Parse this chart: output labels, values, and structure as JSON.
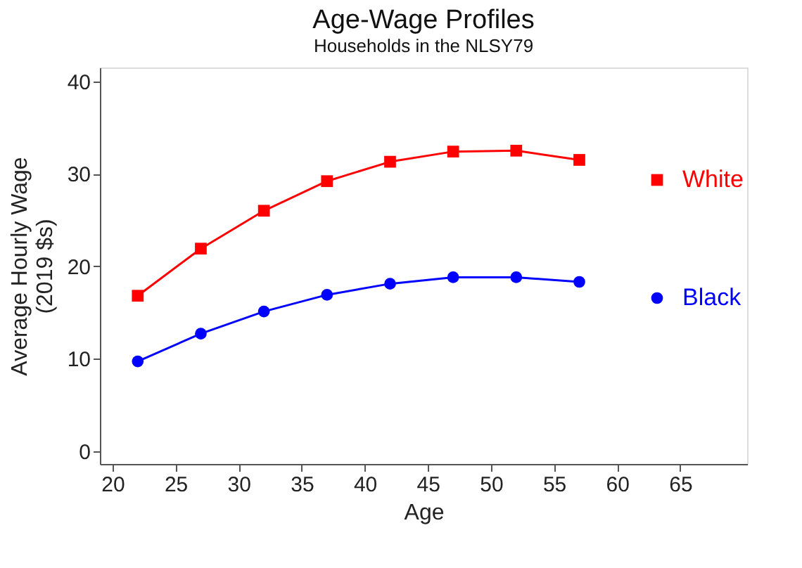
{
  "chart_data": {
    "type": "line",
    "title": "Age-Wage Profiles",
    "subtitle": "Households in the NLSY79",
    "xlabel": "Age",
    "ylabel": "Average Hourly Wage\n(2019 $s)",
    "x": [
      22,
      27,
      32,
      37,
      42,
      47,
      52,
      57
    ],
    "series": [
      {
        "name": "White",
        "color": "#ff0000",
        "marker": "square",
        "values": [
          16.8,
          21.9,
          26.0,
          29.2,
          31.3,
          32.4,
          32.5,
          31.5
        ]
      },
      {
        "name": "Black",
        "color": "#0000ff",
        "marker": "circle",
        "values": [
          9.7,
          12.7,
          15.1,
          16.9,
          18.1,
          18.8,
          18.8,
          18.3
        ]
      }
    ],
    "xlim": [
      19,
      70.3
    ],
    "xticks": [
      20,
      25,
      30,
      35,
      40,
      45,
      50,
      55,
      60,
      65
    ],
    "ylim": [
      -1.4,
      41.5
    ],
    "yticks": [
      0,
      10,
      20,
      30,
      40
    ],
    "grid": false,
    "legend": "right"
  }
}
